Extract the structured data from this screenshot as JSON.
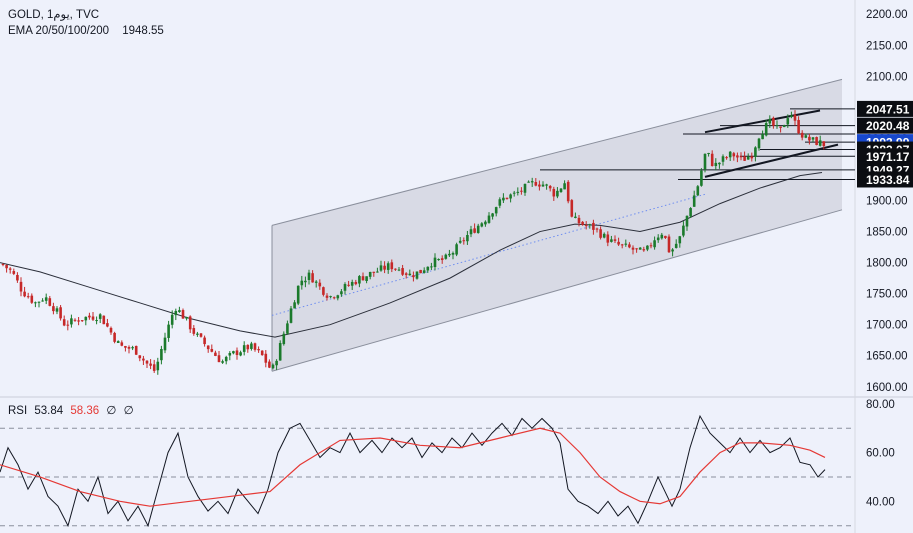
{
  "header": {
    "line1": "GOLD, 1يوم, TVC",
    "ema_label": "EMA 20/50/100/200",
    "ema_value": "1948.55"
  },
  "rsi_header": {
    "label": "RSI",
    "value1": "53.84",
    "value2": "58.36",
    "value3": "∅",
    "value4": "∅"
  },
  "colors": {
    "background": "#eef1fb",
    "up": "#26a69a",
    "down": "#ef5350",
    "up_candle": "#1b7a2c",
    "down_candle": "#c62828",
    "channel_fill": "#d3d6e0",
    "rsi_line": "#131722",
    "rsi_ma": "#e53935"
  },
  "chart_data": [
    {
      "type": "candlestick",
      "symbol": "GOLD",
      "ylim": [
        1590,
        2210
      ],
      "y_ticks": [
        "1600.00",
        "1650.00",
        "1700.00",
        "1750.00",
        "1800.00",
        "1850.00",
        "1900.00",
        "1950.00",
        "2000.00",
        "2050.00",
        "2100.00",
        "2150.00",
        "2200.00"
      ],
      "price_path": [
        [
          0,
          1800
        ],
        [
          12,
          1785
        ],
        [
          22,
          1755
        ],
        [
          35,
          1735
        ],
        [
          45,
          1745
        ],
        [
          55,
          1725
        ],
        [
          65,
          1700
        ],
        [
          80,
          1710
        ],
        [
          100,
          1715
        ],
        [
          110,
          1690
        ],
        [
          120,
          1665
        ],
        [
          135,
          1660
        ],
        [
          145,
          1640
        ],
        [
          155,
          1625
        ],
        [
          165,
          1680
        ],
        [
          175,
          1730
        ],
        [
          185,
          1710
        ],
        [
          195,
          1685
        ],
        [
          210,
          1660
        ],
        [
          222,
          1640
        ],
        [
          235,
          1655
        ],
        [
          250,
          1665
        ],
        [
          262,
          1650
        ],
        [
          272,
          1625
        ],
        [
          280,
          1665
        ],
        [
          290,
          1720
        ],
        [
          300,
          1770
        ],
        [
          310,
          1780
        ],
        [
          320,
          1760
        ],
        [
          330,
          1745
        ],
        [
          345,
          1760
        ],
        [
          360,
          1775
        ],
        [
          375,
          1785
        ],
        [
          390,
          1795
        ],
        [
          400,
          1790
        ],
        [
          410,
          1780
        ],
        [
          420,
          1785
        ],
        [
          430,
          1800
        ],
        [
          445,
          1805
        ],
        [
          455,
          1820
        ],
        [
          465,
          1840
        ],
        [
          475,
          1855
        ],
        [
          485,
          1870
        ],
        [
          495,
          1890
        ],
        [
          505,
          1905
        ],
        [
          515,
          1910
        ],
        [
          525,
          1920
        ],
        [
          535,
          1930
        ],
        [
          545,
          1925
        ],
        [
          555,
          1910
        ],
        [
          565,
          1930
        ],
        [
          572,
          1870
        ],
        [
          585,
          1860
        ],
        [
          595,
          1855
        ],
        [
          605,
          1840
        ],
        [
          615,
          1830
        ],
        [
          625,
          1825
        ],
        [
          635,
          1820
        ],
        [
          645,
          1815
        ],
        [
          655,
          1840
        ],
        [
          663,
          1850
        ],
        [
          670,
          1815
        ],
        [
          680,
          1840
        ],
        [
          688,
          1880
        ],
        [
          698,
          1925
        ],
        [
          706,
          1980
        ],
        [
          714,
          1955
        ],
        [
          722,
          1965
        ],
        [
          732,
          1975
        ],
        [
          742,
          1965
        ],
        [
          752,
          1975
        ],
        [
          760,
          2010
        ],
        [
          770,
          2025
        ],
        [
          780,
          2010
        ],
        [
          790,
          2045
        ],
        [
          796,
          2020
        ],
        [
          805,
          2000
        ],
        [
          815,
          1995
        ],
        [
          825,
          1990
        ]
      ],
      "ema_100": [
        [
          0,
          1800
        ],
        [
          40,
          1785
        ],
        [
          90,
          1760
        ],
        [
          140,
          1735
        ],
        [
          190,
          1710
        ],
        [
          240,
          1690
        ],
        [
          275,
          1680
        ],
        [
          330,
          1700
        ],
        [
          390,
          1735
        ],
        [
          450,
          1775
        ],
        [
          500,
          1820
        ],
        [
          540,
          1850
        ],
        [
          575,
          1862
        ],
        [
          600,
          1860
        ],
        [
          640,
          1850
        ],
        [
          680,
          1865
        ],
        [
          720,
          1895
        ],
        [
          760,
          1920
        ],
        [
          800,
          1940
        ],
        [
          822,
          1945
        ]
      ],
      "channel": {
        "upper": [
          [
            272,
            1860
          ],
          [
            842,
            2095
          ]
        ],
        "lower": [
          [
            272,
            1625
          ],
          [
            842,
            1885
          ]
        ],
        "x_range": [
          272,
          842
        ]
      },
      "inner_channel": {
        "upper": [
          [
            705,
            2010
          ],
          [
            820,
            2045
          ]
        ],
        "lower": [
          [
            705,
            1938
          ],
          [
            838,
            1990
          ]
        ]
      },
      "mid_line": [
        [
          272,
          1715
        ],
        [
          705,
          1910
        ]
      ],
      "levels": [
        {
          "label": "2047.51",
          "value": 2047.51,
          "from_x": 790
        },
        {
          "label": "2020.48",
          "value": 2020.48,
          "from_x": 720
        },
        {
          "label": "1993.99",
          "value": 1993.99,
          "from_x": 805,
          "current": true
        },
        {
          "label": "1982.07",
          "value": 1982.07,
          "from_x": 760
        },
        {
          "label": "1971.17",
          "value": 1971.17,
          "from_x": 740
        },
        {
          "label": "1949.27",
          "value": 1949.27,
          "from_x": 540
        },
        {
          "label": "1933.84",
          "value": 1933.84,
          "from_x": 678
        }
      ],
      "extra_levels": [
        {
          "value": 2007,
          "from_x": 683
        }
      ]
    },
    {
      "type": "line",
      "name": "RSI",
      "ylim": [
        27,
        82
      ],
      "y_ticks": [
        "80.00",
        "60.00",
        "40.00"
      ],
      "bands": [
        70,
        50,
        30
      ],
      "rsi": [
        [
          0,
          52
        ],
        [
          8,
          62
        ],
        [
          18,
          55
        ],
        [
          28,
          45
        ],
        [
          38,
          52
        ],
        [
          48,
          42
        ],
        [
          58,
          38
        ],
        [
          68,
          30
        ],
        [
          78,
          45
        ],
        [
          88,
          40
        ],
        [
          98,
          50
        ],
        [
          108,
          35
        ],
        [
          118,
          40
        ],
        [
          128,
          32
        ],
        [
          138,
          38
        ],
        [
          148,
          30
        ],
        [
          158,
          45
        ],
        [
          168,
          60
        ],
        [
          178,
          68
        ],
        [
          188,
          50
        ],
        [
          198,
          42
        ],
        [
          208,
          36
        ],
        [
          218,
          40
        ],
        [
          228,
          35
        ],
        [
          238,
          45
        ],
        [
          248,
          40
        ],
        [
          258,
          35
        ],
        [
          268,
          45
        ],
        [
          278,
          60
        ],
        [
          290,
          70
        ],
        [
          300,
          72
        ],
        [
          310,
          65
        ],
        [
          320,
          58
        ],
        [
          330,
          62
        ],
        [
          340,
          60
        ],
        [
          350,
          68
        ],
        [
          360,
          60
        ],
        [
          372,
          65
        ],
        [
          382,
          60
        ],
        [
          392,
          66
        ],
        [
          402,
          62
        ],
        [
          412,
          66
        ],
        [
          422,
          58
        ],
        [
          432,
          64
        ],
        [
          442,
          60
        ],
        [
          452,
          66
        ],
        [
          462,
          62
        ],
        [
          472,
          68
        ],
        [
          482,
          63
        ],
        [
          492,
          68
        ],
        [
          502,
          72
        ],
        [
          512,
          67
        ],
        [
          522,
          74
        ],
        [
          532,
          70
        ],
        [
          542,
          74
        ],
        [
          552,
          70
        ],
        [
          560,
          64
        ],
        [
          568,
          45
        ],
        [
          578,
          40
        ],
        [
          588,
          38
        ],
        [
          598,
          35
        ],
        [
          608,
          40
        ],
        [
          618,
          34
        ],
        [
          628,
          38
        ],
        [
          638,
          31
        ],
        [
          648,
          40
        ],
        [
          658,
          50
        ],
        [
          665,
          44
        ],
        [
          672,
          38
        ],
        [
          680,
          45
        ],
        [
          690,
          62
        ],
        [
          700,
          75
        ],
        [
          710,
          68
        ],
        [
          720,
          64
        ],
        [
          730,
          60
        ],
        [
          740,
          66
        ],
        [
          750,
          60
        ],
        [
          760,
          65
        ],
        [
          770,
          60
        ],
        [
          780,
          62
        ],
        [
          790,
          66
        ],
        [
          800,
          56
        ],
        [
          810,
          55
        ],
        [
          818,
          50
        ],
        [
          825,
          53
        ]
      ],
      "rsi_ma": [
        [
          0,
          55
        ],
        [
          40,
          50
        ],
        [
          80,
          44
        ],
        [
          120,
          40
        ],
        [
          150,
          38
        ],
        [
          190,
          40
        ],
        [
          230,
          42
        ],
        [
          270,
          44
        ],
        [
          300,
          55
        ],
        [
          340,
          65
        ],
        [
          380,
          66
        ],
        [
          420,
          63
        ],
        [
          460,
          62
        ],
        [
          500,
          66
        ],
        [
          540,
          70
        ],
        [
          560,
          68
        ],
        [
          580,
          60
        ],
        [
          600,
          50
        ],
        [
          620,
          44
        ],
        [
          640,
          40
        ],
        [
          660,
          39
        ],
        [
          680,
          42
        ],
        [
          700,
          52
        ],
        [
          720,
          60
        ],
        [
          740,
          64
        ],
        [
          760,
          64
        ],
        [
          790,
          63
        ],
        [
          810,
          61
        ],
        [
          825,
          58
        ]
      ]
    }
  ]
}
